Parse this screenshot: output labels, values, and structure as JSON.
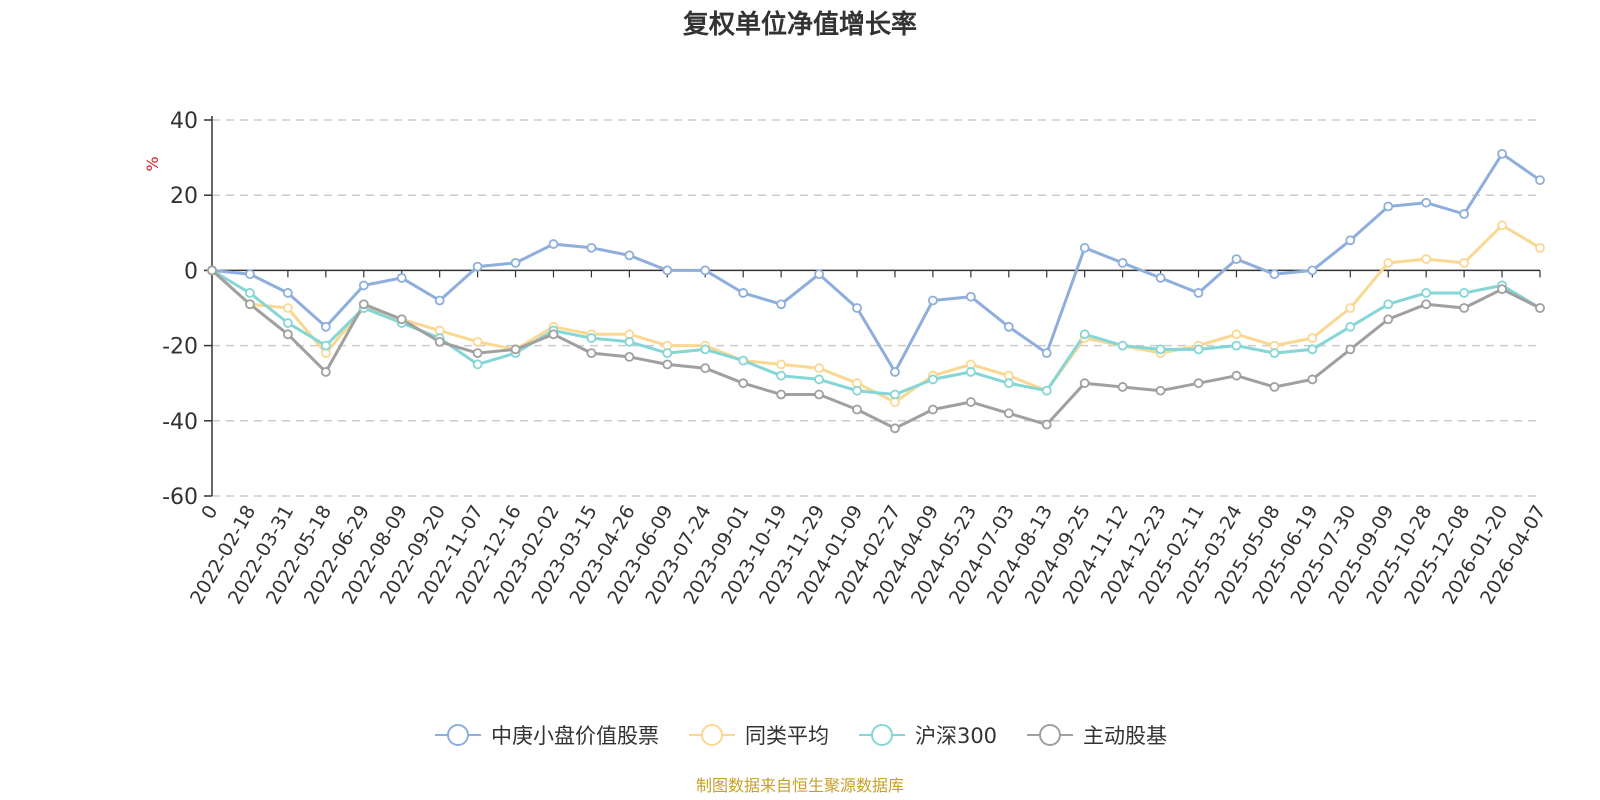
{
  "chart_data": {
    "type": "line",
    "title": "复权单位净值增长率",
    "ylabel": "%",
    "ylim": [
      -60,
      40
    ],
    "yticks": [
      40,
      20,
      0,
      -20,
      -40,
      -60
    ],
    "grid": true,
    "legend_position": "bottom",
    "source": "制图数据来自恒生聚源数据库",
    "categories": [
      "0",
      "2022-02-18",
      "2022-03-31",
      "2022-05-18",
      "2022-06-29",
      "2022-08-09",
      "2022-09-20",
      "2022-11-07",
      "2022-12-16",
      "2023-02-02",
      "2023-03-15",
      "2023-04-26",
      "2023-06-09",
      "2023-07-24",
      "2023-09-01",
      "2023-10-19",
      "2023-11-29",
      "2024-01-09",
      "2024-02-27",
      "2024-04-09",
      "2024-05-23",
      "2024-07-03",
      "2024-08-13",
      "2024-09-25",
      "2024-11-12",
      "2024-12-23",
      "2025-02-11",
      "2025-03-24",
      "2025-05-08",
      "2025-06-19",
      "2025-07-30",
      "2025-09-09",
      "2025-10-28",
      "2025-12-08",
      "2026-01-20",
      "2026-04-07"
    ],
    "series": [
      {
        "name": "中庚小盘价值股票",
        "color": "#8eaedc",
        "values": [
          0,
          -1,
          -6,
          -15,
          -4,
          -2,
          -8,
          1,
          2,
          7,
          6,
          4,
          0,
          0,
          -6,
          -9,
          -1,
          -10,
          -27,
          -8,
          -7,
          -15,
          -22,
          6,
          2,
          -2,
          -6,
          3,
          -1,
          0,
          8,
          17,
          18,
          15,
          31,
          24
        ]
      },
      {
        "name": "同类平均",
        "color": "#fbd892",
        "values": [
          0,
          -9,
          -10,
          -22,
          -10,
          -13,
          -16,
          -19,
          -21,
          -15,
          -17,
          -17,
          -20,
          -20,
          -24,
          -25,
          -26,
          -30,
          -35,
          -28,
          -25,
          -28,
          -32,
          -18,
          -20,
          -22,
          -20,
          -17,
          -20,
          -18,
          -10,
          2,
          3,
          2,
          12,
          6
        ]
      },
      {
        "name": "沪深300",
        "color": "#85d6d6",
        "values": [
          0,
          -6,
          -14,
          -20,
          -10,
          -14,
          -18,
          -25,
          -22,
          -16,
          -18,
          -19,
          -22,
          -21,
          -24,
          -28,
          -29,
          -32,
          -33,
          -29,
          -27,
          -30,
          -32,
          -17,
          -20,
          -21,
          -21,
          -20,
          -22,
          -21,
          -15,
          -9,
          -6,
          -6,
          -4,
          -10
        ]
      },
      {
        "name": "主动股基",
        "color": "#a0a0a0",
        "values": [
          0,
          -9,
          -17,
          -27,
          -9,
          -13,
          -19,
          -22,
          -21,
          -17,
          -22,
          -23,
          -25,
          -26,
          -30,
          -33,
          -33,
          -37,
          -42,
          -37,
          -35,
          -38,
          -41,
          -30,
          -31,
          -32,
          -30,
          -28,
          -31,
          -29,
          -21,
          -13,
          -9,
          -10,
          -5,
          -10
        ]
      }
    ]
  }
}
